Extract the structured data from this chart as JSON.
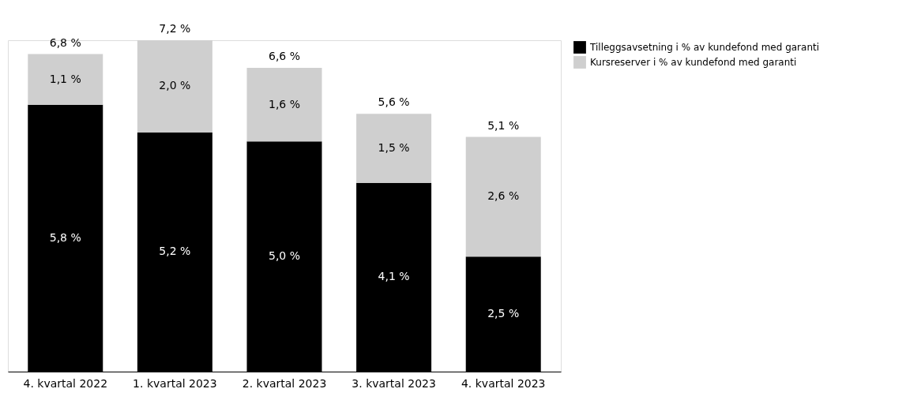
{
  "chart_data": {
    "type": "bar",
    "stacked": true,
    "legend": "right",
    "grid": false,
    "categories": [
      "4. kvartal 2022",
      "1. kvartal 2023",
      "2. kvartal 2023",
      "3. kvartal 2023",
      "4. kvartal 2023"
    ],
    "series": [
      {
        "name": "Tilleggsavsetning i % av kundefond med garanti",
        "color": "#000000",
        "values": [
          5.8,
          5.2,
          5.0,
          4.1,
          2.5
        ],
        "value_labels": [
          "5,8 %",
          "5,2 %",
          "5,0 %",
          "4,1 %",
          "2,5 %"
        ]
      },
      {
        "name": "Kursreserver i % av kundefond med garanti",
        "color": "#cfcfcf",
        "values": [
          1.1,
          2.0,
          1.6,
          1.5,
          2.6
        ],
        "value_labels": [
          "1,1 %",
          "2,0 %",
          "1,6 %",
          "1,5 %",
          "2,6 %"
        ]
      }
    ],
    "totals": [
      "6,8 %",
      "7,2 %",
      "6,6 %",
      "5,6 %",
      "5,1 %"
    ]
  }
}
